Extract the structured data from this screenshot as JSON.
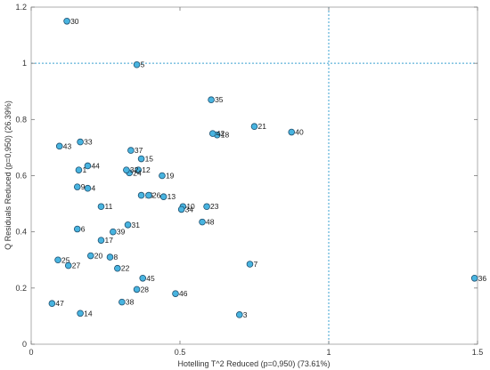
{
  "chart_data": {
    "type": "scatter",
    "xlabel": "Hotelling T^2 Reduced (p=0,950) (73.61%)",
    "ylabel": "Q Residuals Reduced (p=0,950) (26.39%)",
    "xlim": [
      0,
      1.5
    ],
    "ylim": [
      0,
      1.2
    ],
    "x_ticks": [
      "0",
      "0.5",
      "1",
      "1.5"
    ],
    "y_ticks": [
      "0",
      "0.2",
      "0.4",
      "0.6",
      "0.8",
      "1",
      "1.2"
    ],
    "grid": false,
    "limit_lines": {
      "x": 1,
      "y": 1
    },
    "marker_color": "#48b4e0",
    "marker_edge_color": "#1f4f6e",
    "limit_line_color": "#3aa0d0",
    "points": [
      {
        "label": "1",
        "x": 0.16,
        "y": 0.62
      },
      {
        "label": "3",
        "x": 0.7,
        "y": 0.105
      },
      {
        "label": "4",
        "x": 0.19,
        "y": 0.555
      },
      {
        "label": "5",
        "x": 0.355,
        "y": 0.995
      },
      {
        "label": "6",
        "x": 0.155,
        "y": 0.41
      },
      {
        "label": "7",
        "x": 0.735,
        "y": 0.285
      },
      {
        "label": "8",
        "x": 0.265,
        "y": 0.31
      },
      {
        "label": "9",
        "x": 0.155,
        "y": 0.56
      },
      {
        "label": "10",
        "x": 0.51,
        "y": 0.49
      },
      {
        "label": "11",
        "x": 0.235,
        "y": 0.49
      },
      {
        "label": "12",
        "x": 0.36,
        "y": 0.62
      },
      {
        "label": "13",
        "x": 0.445,
        "y": 0.525
      },
      {
        "label": "14",
        "x": 0.165,
        "y": 0.11
      },
      {
        "label": "15",
        "x": 0.37,
        "y": 0.66
      },
      {
        "label": "16",
        "x": 0.37,
        "y": 0.53
      },
      {
        "label": "17",
        "x": 0.235,
        "y": 0.37
      },
      {
        "label": "18",
        "x": 0.625,
        "y": 0.745
      },
      {
        "label": "19",
        "x": 0.44,
        "y": 0.6
      },
      {
        "label": "20",
        "x": 0.2,
        "y": 0.315
      },
      {
        "label": "21",
        "x": 0.75,
        "y": 0.775
      },
      {
        "label": "22",
        "x": 0.29,
        "y": 0.27
      },
      {
        "label": "23",
        "x": 0.59,
        "y": 0.49
      },
      {
        "label": "24",
        "x": 0.33,
        "y": 0.61
      },
      {
        "label": "25",
        "x": 0.09,
        "y": 0.3
      },
      {
        "label": "26",
        "x": 0.395,
        "y": 0.53
      },
      {
        "label": "27",
        "x": 0.125,
        "y": 0.28
      },
      {
        "label": "28",
        "x": 0.355,
        "y": 0.195
      },
      {
        "label": "30",
        "x": 0.12,
        "y": 1.15
      },
      {
        "label": "31",
        "x": 0.325,
        "y": 0.425
      },
      {
        "label": "32",
        "x": 0.32,
        "y": 0.62
      },
      {
        "label": "33",
        "x": 0.165,
        "y": 0.72
      },
      {
        "label": "34",
        "x": 0.505,
        "y": 0.48
      },
      {
        "label": "35",
        "x": 0.605,
        "y": 0.87
      },
      {
        "label": "36",
        "x": 1.49,
        "y": 0.235
      },
      {
        "label": "37",
        "x": 0.335,
        "y": 0.69
      },
      {
        "label": "38",
        "x": 0.305,
        "y": 0.15
      },
      {
        "label": "39",
        "x": 0.275,
        "y": 0.4
      },
      {
        "label": "40",
        "x": 0.875,
        "y": 0.755
      },
      {
        "label": "42",
        "x": 0.61,
        "y": 0.75
      },
      {
        "label": "43",
        "x": 0.095,
        "y": 0.705
      },
      {
        "label": "44",
        "x": 0.19,
        "y": 0.635
      },
      {
        "label": "45",
        "x": 0.375,
        "y": 0.235
      },
      {
        "label": "46",
        "x": 0.485,
        "y": 0.18
      },
      {
        "label": "47",
        "x": 0.07,
        "y": 0.145
      },
      {
        "label": "48",
        "x": 0.575,
        "y": 0.435
      }
    ]
  }
}
